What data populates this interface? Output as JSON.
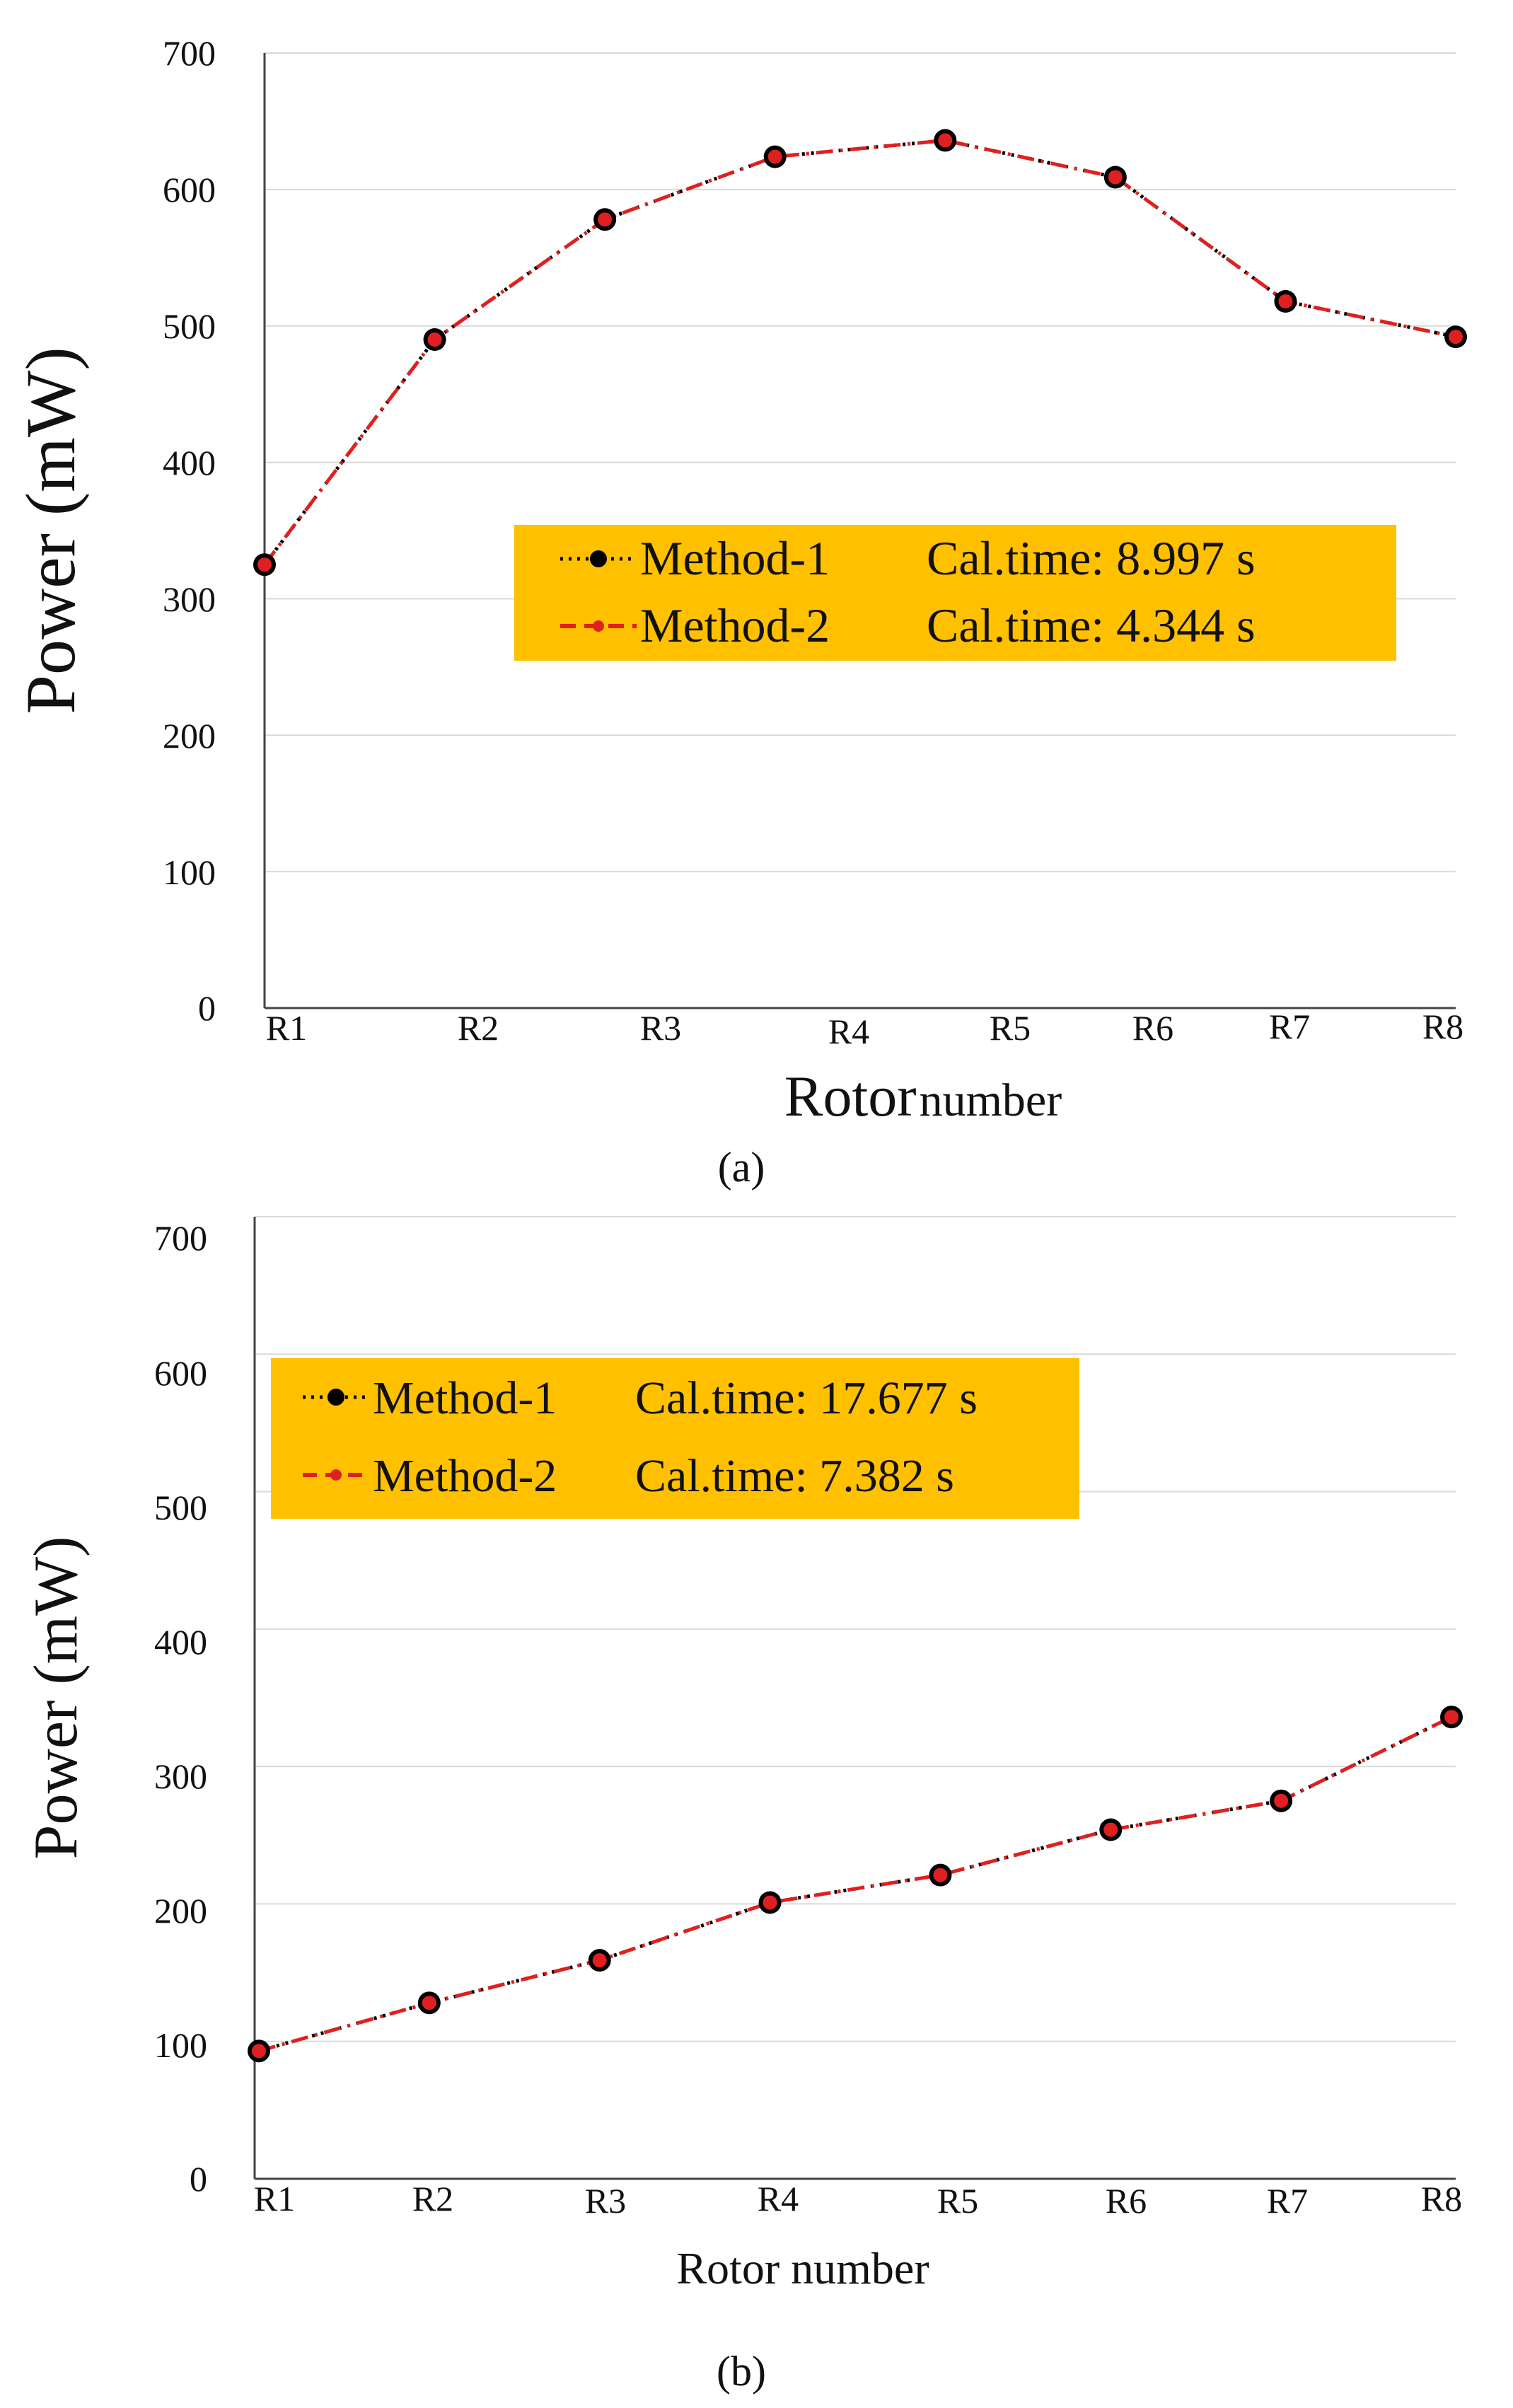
{
  "chart_data": [
    {
      "type": "line",
      "panel_label": "(a)",
      "categories": [
        "R1",
        "R2",
        "R3",
        "R4",
        "R5",
        "R6",
        "R7",
        "R8"
      ],
      "series": [
        {
          "name": "Method-1",
          "values": [
            325,
            490,
            578,
            624,
            636,
            609,
            518,
            492
          ],
          "color": "#000000",
          "style": "dotted"
        },
        {
          "name": "Method-2",
          "values": [
            325,
            490,
            578,
            624,
            636,
            609,
            518,
            492
          ],
          "color": "#e02020",
          "style": "dashed"
        }
      ],
      "legend": [
        {
          "name": "Method-1",
          "time": "Cal.time: 8.997 s"
        },
        {
          "name": "Method-2",
          "time": "Cal.time: 4.344 s"
        }
      ],
      "legend_bg": "#ffc000",
      "xlabel_main": "Rotor",
      "xlabel_rest": "number",
      "ylabel": "Power (mW)",
      "yticks": [
        "0",
        "100",
        "200",
        "300",
        "400",
        "500",
        "600",
        "700"
      ],
      "ylim": [
        0,
        700
      ],
      "grid": true
    },
    {
      "type": "line",
      "panel_label": "(b)",
      "categories": [
        "R1",
        "R2",
        "R3",
        "R4",
        "R5",
        "R6",
        "R7",
        "R8"
      ],
      "series": [
        {
          "name": "Method-1",
          "values": [
            93,
            128,
            159,
            201,
            221,
            254,
            275,
            336
          ],
          "color": "#000000",
          "style": "dotted"
        },
        {
          "name": "Method-2",
          "values": [
            93,
            128,
            159,
            201,
            221,
            254,
            275,
            336
          ],
          "color": "#e02020",
          "style": "dashed"
        }
      ],
      "legend": [
        {
          "name": "Method-1",
          "time": "Cal.time: 17.677 s"
        },
        {
          "name": "Method-2",
          "time": "Cal.time: 7.382 s"
        }
      ],
      "legend_bg": "#ffc000",
      "xlabel": "Rotor number",
      "ylabel": "Power (mW)",
      "yticks": [
        "0",
        "100",
        "200",
        "300",
        "400",
        "500",
        "600",
        "700"
      ],
      "ylim": [
        0,
        700
      ],
      "grid": true
    }
  ]
}
